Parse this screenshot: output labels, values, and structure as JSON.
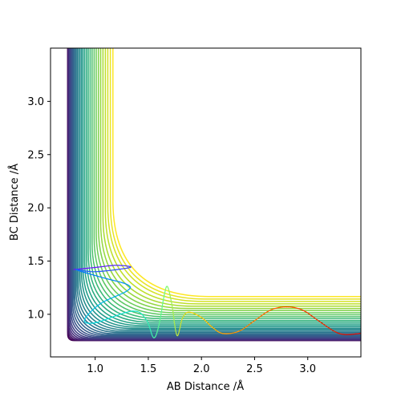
{
  "chart_data": {
    "type": "contour",
    "title": "",
    "xlabel": "AB Distance /Å",
    "ylabel": "BC Distance /Å",
    "xlim": [
      0.58,
      3.5
    ],
    "ylim": [
      0.6,
      3.5
    ],
    "x_ticks": [
      1.0,
      1.5,
      2.0,
      2.5,
      3.0
    ],
    "y_ticks": [
      1.0,
      1.5,
      2.0,
      2.5,
      3.0
    ],
    "x_tick_labels": [
      "1.0",
      "1.5",
      "2.0",
      "2.5",
      "3.0"
    ],
    "y_tick_labels": [
      "1.0",
      "1.5",
      "2.0",
      "2.5",
      "3.0"
    ],
    "grid": false,
    "colormap": "viridis",
    "contour_levels": 32,
    "contour_corner": {
      "x": 0.74,
      "y": 0.75
    },
    "contour_outer_offsets": [
      1.25,
      1.28
    ],
    "trajectory": {
      "colormap": "rainbow",
      "points": [
        [
          0.8,
          1.42
        ],
        [
          1.0,
          1.44
        ],
        [
          1.2,
          1.46
        ],
        [
          1.33,
          1.44
        ],
        [
          1.0,
          1.4
        ],
        [
          0.82,
          1.42
        ],
        [
          1.05,
          1.35
        ],
        [
          1.3,
          1.28
        ],
        [
          1.3,
          1.22
        ],
        [
          1.05,
          1.1
        ],
        [
          0.9,
          0.95
        ],
        [
          1.0,
          0.92
        ],
        [
          1.35,
          1.03
        ],
        [
          1.48,
          0.95
        ],
        [
          1.55,
          0.78
        ],
        [
          1.6,
          0.9
        ],
        [
          1.65,
          1.18
        ],
        [
          1.68,
          1.26
        ],
        [
          1.72,
          1.1
        ],
        [
          1.77,
          0.8
        ],
        [
          1.82,
          0.96
        ],
        [
          1.88,
          1.02
        ],
        [
          2.0,
          0.97
        ],
        [
          2.1,
          0.88
        ],
        [
          2.2,
          0.82
        ],
        [
          2.35,
          0.84
        ],
        [
          2.5,
          0.94
        ],
        [
          2.65,
          1.04
        ],
        [
          2.8,
          1.07
        ],
        [
          2.95,
          1.04
        ],
        [
          3.1,
          0.94
        ],
        [
          3.25,
          0.84
        ],
        [
          3.35,
          0.81
        ],
        [
          3.5,
          0.82
        ]
      ]
    }
  }
}
